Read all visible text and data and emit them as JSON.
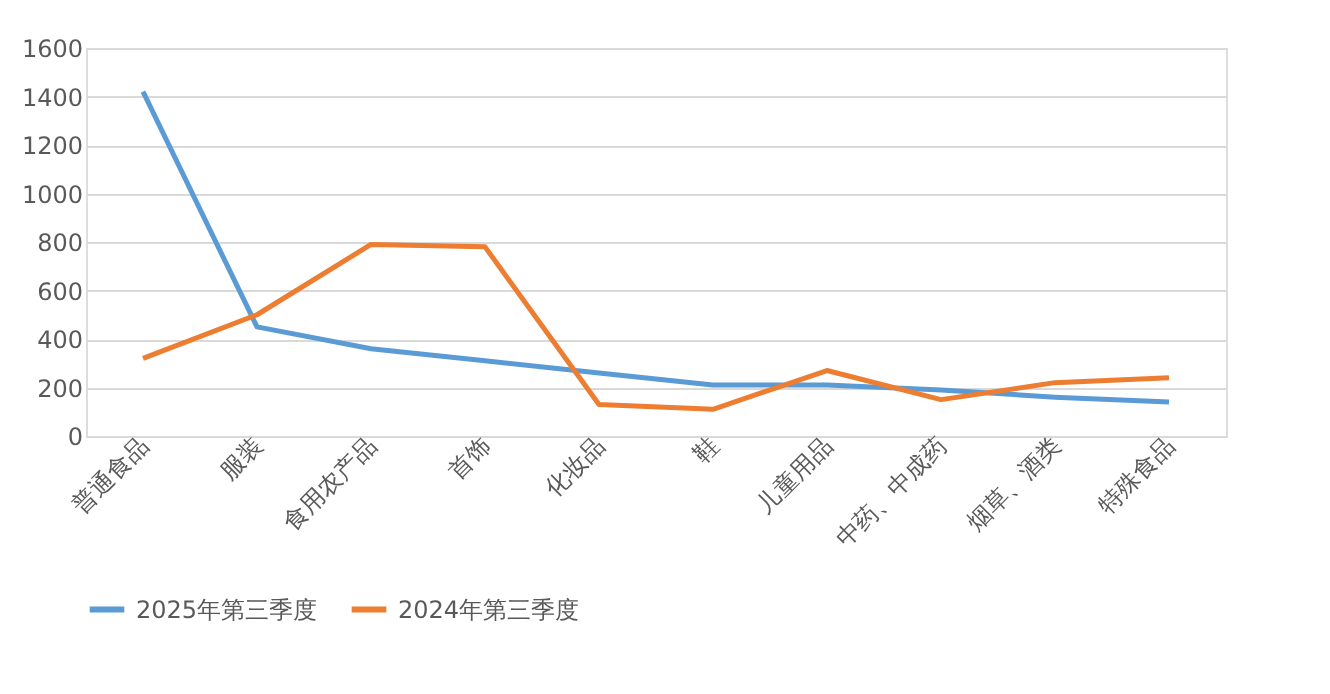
{
  "chart_data": {
    "type": "line",
    "categories": [
      "普通食品",
      "服装",
      "食用农产品",
      "首饰",
      "化妆品",
      "鞋",
      "儿童用品",
      "中药、中成药",
      "烟草、酒类",
      "特殊食品"
    ],
    "series": [
      {
        "name": "2025年第三季度",
        "color": "#5b9bd5",
        "values": [
          1420,
          450,
          360,
          310,
          260,
          210,
          210,
          190,
          160,
          140
        ]
      },
      {
        "name": "2024年第三季度",
        "color": "#ed7d31",
        "values": [
          320,
          500,
          790,
          780,
          130,
          110,
          270,
          150,
          220,
          240
        ]
      }
    ],
    "ylim": [
      0,
      1600
    ],
    "yticks": [
      0,
      200,
      400,
      600,
      800,
      1000,
      1200,
      1400,
      1600
    ],
    "grid": "y",
    "legend": "bottom",
    "marker": "none",
    "line_style": "solid"
  }
}
